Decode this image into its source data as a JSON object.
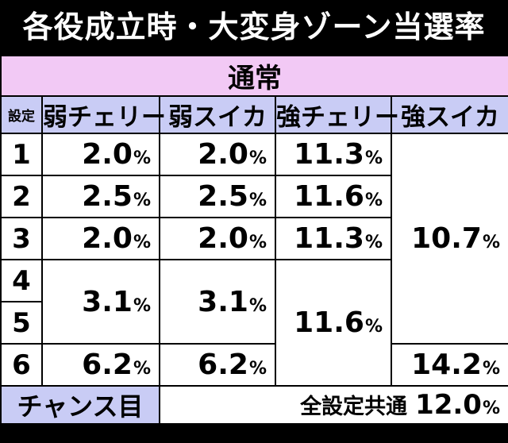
{
  "title": "各役成立時・大変身ゾーン当選率",
  "section_label": "通常",
  "headers": {
    "setting": "設定",
    "weak_cherry": "弱チェリー",
    "weak_watermelon": "弱スイカ",
    "strong_cherry": "強チェリー",
    "strong_watermelon": "強スイカ"
  },
  "percent_symbol": "%",
  "rows": [
    {
      "setting": "1",
      "weak_cherry": "2.0",
      "weak_watermelon": "2.0",
      "strong_cherry": "11.3"
    },
    {
      "setting": "2",
      "weak_cherry": "2.5",
      "weak_watermelon": "2.5",
      "strong_cherry": "11.6"
    },
    {
      "setting": "3",
      "weak_cherry": "2.0",
      "weak_watermelon": "2.0",
      "strong_cherry": "11.3"
    },
    {
      "setting": "4"
    },
    {
      "setting": "5"
    },
    {
      "setting": "6",
      "weak_cherry": "6.2",
      "weak_watermelon": "6.2"
    }
  ],
  "merged": {
    "weak_cherry_4_5": "3.1",
    "weak_watermelon_4_5": "3.1",
    "strong_cherry_4_6": "11.6",
    "strong_watermelon_1_5": "10.7",
    "strong_watermelon_6": "14.2"
  },
  "chance": {
    "label": "チャンス目",
    "common_label": "全設定共通",
    "value": "12.0"
  }
}
